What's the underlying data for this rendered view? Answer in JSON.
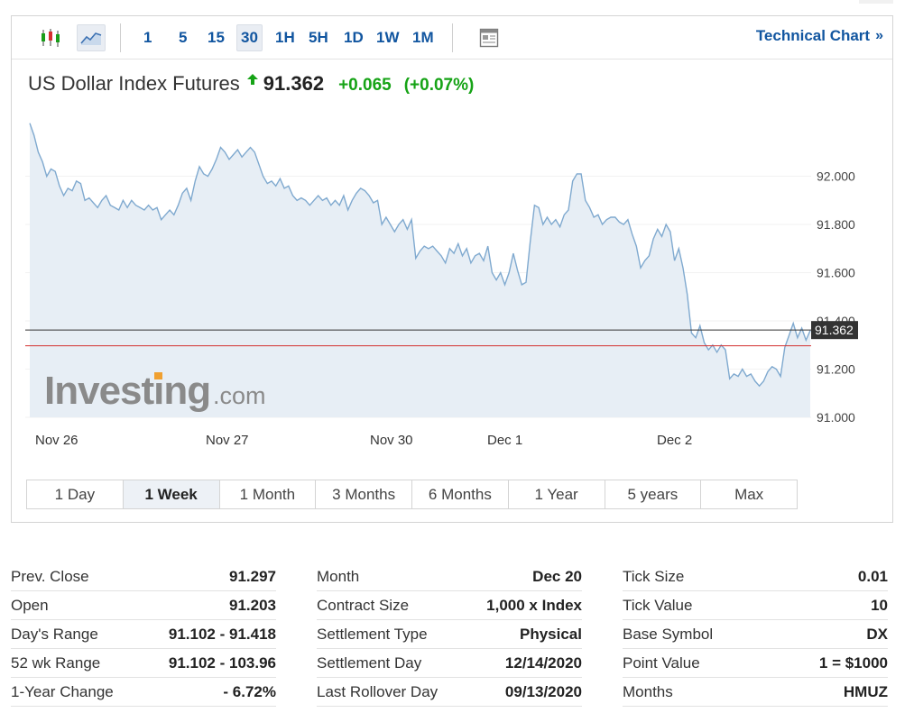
{
  "toolbar": {
    "icons": [
      "candlestick-icon",
      "area-chart-icon"
    ],
    "intervals": [
      "1",
      "5",
      "15",
      "30",
      "1H",
      "5H",
      "1D",
      "1W",
      "1M"
    ],
    "active_interval": "30",
    "news_icon": "news-icon",
    "technical_chart_label": "Technical Chart",
    "technical_chart_arrows": "»"
  },
  "quote": {
    "name": "US Dollar Index Futures",
    "direction_icon": "up-arrow-icon",
    "price": "91.362",
    "change": "+0.065",
    "change_pct": "(+0.07%)"
  },
  "chart_data": {
    "type": "area",
    "x_tick_labels": [
      "Nov 26",
      "Nov 27",
      "Nov 30",
      "Dec 1",
      "Dec 2"
    ],
    "y_tick_labels": [
      "92.000",
      "91.800",
      "91.600",
      "91.400",
      "91.200",
      "91.000"
    ],
    "y_ticks": [
      92.0,
      91.8,
      91.6,
      91.4,
      91.2,
      91.0
    ],
    "ylim": [
      91.0,
      92.29
    ],
    "last_price_label": "91.362",
    "last_price": 91.362,
    "prev_close": 91.297,
    "watermark": "Investing.com",
    "colors": {
      "line": "#7fa9cf",
      "fill": "#e7eef5",
      "prev_close_line": "#d3302f",
      "last_price_line": "#333333"
    },
    "series": [
      {
        "values": [
          92.22,
          92.17,
          92.1,
          92.06,
          92.0,
          92.03,
          92.02,
          91.96,
          91.92,
          91.95,
          91.94,
          91.98,
          91.97,
          91.9,
          91.91,
          91.89,
          91.87,
          91.9,
          91.92,
          91.88,
          91.87,
          91.86,
          91.9,
          91.87,
          91.9,
          91.88,
          91.87,
          91.86,
          91.88,
          91.86,
          91.87,
          91.82,
          91.84,
          91.86,
          91.84,
          91.88,
          91.93,
          91.95,
          91.9,
          91.98,
          92.04,
          92.01,
          92.0,
          92.03,
          92.07,
          92.12,
          92.1,
          92.07,
          92.09,
          92.11,
          92.08,
          92.1,
          92.12,
          92.1,
          92.05,
          92.0,
          91.97,
          91.98,
          91.96,
          91.99,
          91.95,
          91.96,
          91.92,
          91.9,
          91.91,
          91.9,
          91.88,
          91.9,
          91.92,
          91.9,
          91.91,
          91.88,
          91.9,
          91.88,
          91.92,
          91.86,
          91.9,
          91.93,
          91.95,
          91.94,
          91.92,
          91.89,
          91.9,
          91.8,
          91.83,
          91.8,
          91.77,
          91.8,
          91.82,
          91.78,
          91.82,
          91.66,
          91.69,
          91.71,
          91.7,
          91.71,
          91.69,
          91.67,
          91.64,
          91.7,
          91.68,
          91.72,
          91.67,
          91.7,
          91.64,
          91.67,
          91.68,
          91.65,
          91.71,
          91.6,
          91.57,
          91.6,
          91.55,
          91.6,
          91.68,
          91.61,
          91.55,
          91.56,
          91.73,
          91.88,
          91.87,
          91.8,
          91.83,
          91.8,
          91.82,
          91.79,
          91.84,
          91.86,
          91.98,
          92.01,
          92.01,
          91.9,
          91.87,
          91.83,
          91.84,
          91.8,
          91.82,
          91.83,
          91.83,
          91.81,
          91.8,
          91.82,
          91.76,
          91.71,
          91.62,
          91.65,
          91.67,
          91.74,
          91.78,
          91.75,
          91.8,
          91.77,
          91.65,
          91.7,
          91.62,
          91.51,
          91.35,
          91.33,
          91.38,
          91.31,
          91.28,
          91.3,
          91.27,
          91.3,
          91.28,
          91.16,
          91.18,
          91.17,
          91.2,
          91.17,
          91.18,
          91.15,
          91.13,
          91.15,
          91.19,
          91.21,
          91.2,
          91.17,
          91.29,
          91.34,
          91.39,
          91.33,
          91.37,
          91.32,
          91.36
        ]
      }
    ]
  },
  "ranges": {
    "items": [
      "1 Day",
      "1 Week",
      "1 Month",
      "3 Months",
      "6 Months",
      "1 Year",
      "5 years",
      "Max"
    ],
    "active": "1 Week"
  },
  "stats": {
    "col1": [
      {
        "label": "Prev. Close",
        "value": "91.297"
      },
      {
        "label": "Open",
        "value": "91.203"
      },
      {
        "label": "Day's Range",
        "value": "91.102 - 91.418"
      },
      {
        "label": "52 wk Range",
        "value": "91.102 - 103.96"
      },
      {
        "label": "1-Year Change",
        "value": "- 6.72%"
      }
    ],
    "col2": [
      {
        "label": "Month",
        "value": "Dec 20"
      },
      {
        "label": "Contract Size",
        "value": "1,000 x Index"
      },
      {
        "label": "Settlement Type",
        "value": "Physical"
      },
      {
        "label": "Settlement Day",
        "value": "12/14/2020"
      },
      {
        "label": "Last Rollover Day",
        "value": "09/13/2020"
      }
    ],
    "col3": [
      {
        "label": "Tick Size",
        "value": "0.01"
      },
      {
        "label": "Tick Value",
        "value": "10"
      },
      {
        "label": "Base Symbol",
        "value": "DX"
      },
      {
        "label": "Point Value",
        "value": "1 = $1000"
      },
      {
        "label": "Months",
        "value": "HMUZ"
      }
    ]
  }
}
